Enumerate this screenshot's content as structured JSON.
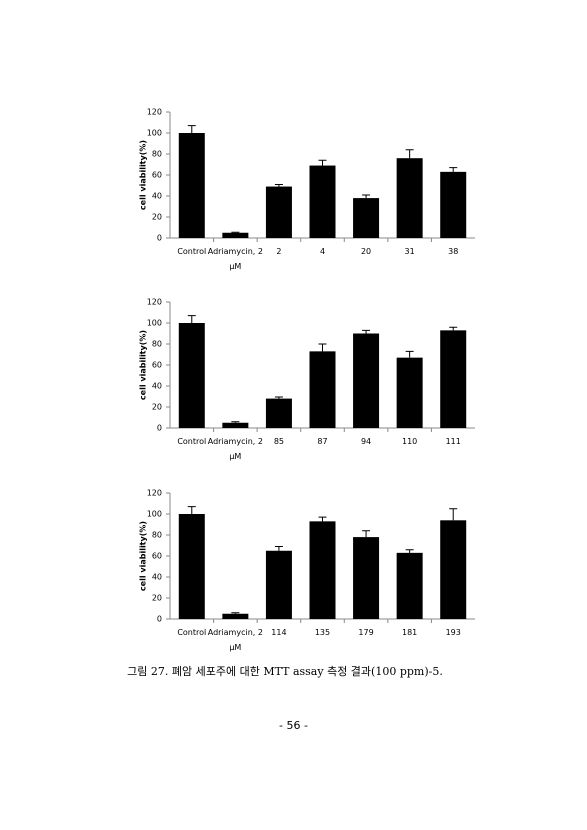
{
  "chart_data": [
    {
      "type": "bar",
      "y_label": "cell viability(%)",
      "categories": [
        "Control",
        "Adriamycin, 2 μM",
        "2",
        "4",
        "20",
        "31",
        "38"
      ],
      "values": [
        100,
        5,
        49,
        69,
        38,
        76,
        63
      ],
      "errors": [
        7,
        0.5,
        2,
        5,
        3,
        8,
        4
      ],
      "color": "#000000",
      "ylim": [
        0,
        120
      ],
      "yticks": [
        0,
        20,
        40,
        60,
        80,
        100,
        120
      ],
      "grid": false
    },
    {
      "type": "bar",
      "y_label": "cell viability(%)",
      "categories": [
        "Control",
        "Adriamycin, 2 μM",
        "85",
        "87",
        "94",
        "110",
        "111"
      ],
      "values": [
        100,
        5,
        28,
        73,
        90,
        67,
        93
      ],
      "errors": [
        7,
        1,
        1.5,
        7,
        3,
        6,
        3
      ],
      "color": "#000000",
      "ylim": [
        0,
        120
      ],
      "yticks": [
        0,
        20,
        40,
        60,
        80,
        100,
        120
      ],
      "grid": false
    },
    {
      "type": "bar",
      "y_label": "cell viability(%)",
      "categories": [
        "Control",
        "Adriamycin, 2 μM",
        "114",
        "135",
        "179",
        "181",
        "193"
      ],
      "values": [
        100,
        5,
        65,
        93,
        78,
        63,
        94
      ],
      "errors": [
        7,
        1,
        4,
        4,
        6,
        3,
        11
      ],
      "color": "#000000",
      "ylim": [
        0,
        120
      ],
      "yticks": [
        0,
        20,
        40,
        60,
        80,
        100,
        120
      ],
      "grid": false
    }
  ],
  "caption": "그림 27. 폐암 세포주에 대한 MTT assay 측정 결과(100 ppm)-5.",
  "page_number": "- 56 -"
}
